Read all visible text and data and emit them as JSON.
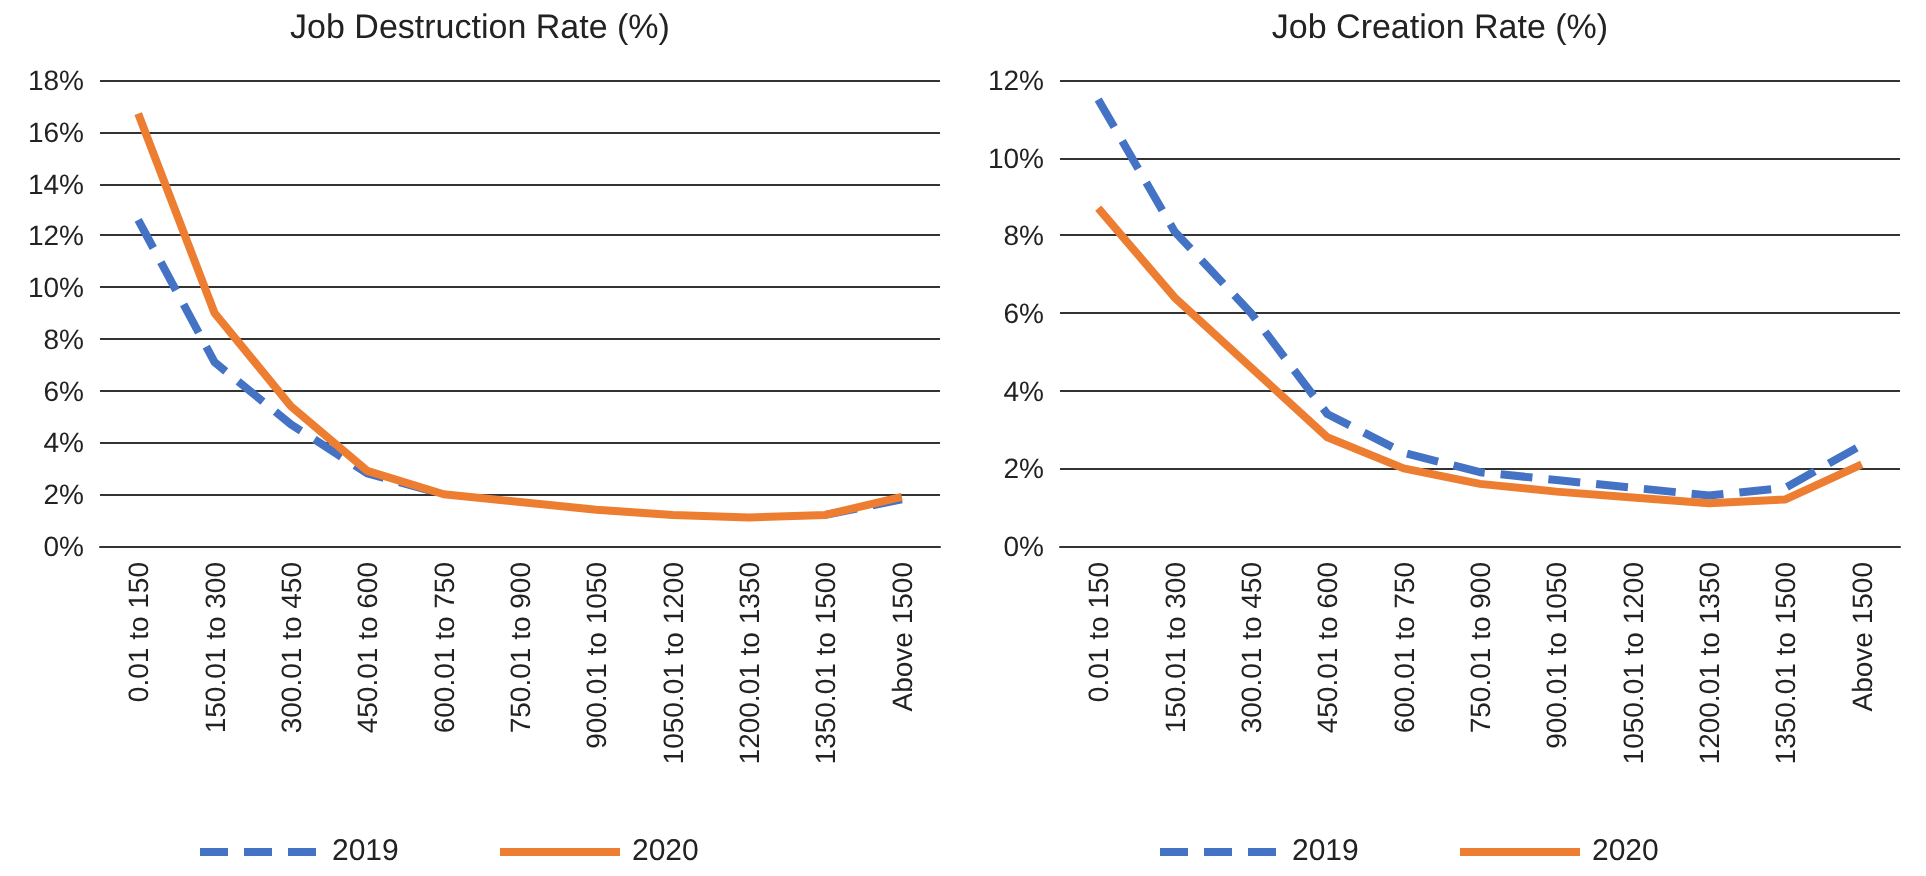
{
  "chart_data": [
    {
      "type": "line",
      "title": "Job Destruction Rate (%)",
      "categories": [
        "0.01 to 150",
        "150.01 to 300",
        "300.01 to 450",
        "450.01 to 600",
        "600.01 to 750",
        "750.01 to 900",
        "900.01 to 1050",
        "1050.01 to 1200",
        "1200.01 to 1350",
        "1350.01 to 1500",
        "Above 1500"
      ],
      "series": [
        {
          "name": "2019",
          "color": "#4472c4",
          "line_style": "dashed",
          "values": [
            12.6,
            7.1,
            4.7,
            2.8,
            2.0,
            null,
            null,
            null,
            null,
            1.2,
            1.8
          ]
        },
        {
          "name": "2020",
          "color": "#ed7d31",
          "line_style": "solid",
          "values": [
            16.7,
            9.0,
            5.4,
            2.9,
            2.0,
            1.7,
            1.4,
            1.2,
            1.1,
            1.2,
            1.9
          ]
        }
      ],
      "ylim": [
        0,
        18
      ],
      "yticks": [
        {
          "value": 0,
          "label": "0%"
        },
        {
          "value": 2,
          "label": "2%"
        },
        {
          "value": 4,
          "label": "4%"
        },
        {
          "value": 6,
          "label": "6%"
        },
        {
          "value": 8,
          "label": "8%"
        },
        {
          "value": 10,
          "label": "10%"
        },
        {
          "value": 12,
          "label": "12%"
        },
        {
          "value": 14,
          "label": "14%"
        },
        {
          "value": 16,
          "label": "16%"
        },
        {
          "value": 18,
          "label": "18%"
        }
      ],
      "grid": "y",
      "legend": "bottom",
      "marker": "none"
    },
    {
      "type": "line",
      "title": "Job Creation Rate (%)",
      "categories": [
        "0.01 to 150",
        "150.01 to 300",
        "300.01 to 450",
        "450.01 to 600",
        "600.01 to 750",
        "750.01 to 900",
        "900.01 to 1050",
        "1050.01 to 1200",
        "1200.01 to 1350",
        "1350.01 to 1500",
        "Above 1500"
      ],
      "series": [
        {
          "name": "2019",
          "color": "#4472c4",
          "line_style": "dashed",
          "values": [
            11.5,
            8.1,
            6.0,
            3.4,
            2.4,
            1.9,
            1.7,
            1.5,
            1.3,
            1.5,
            2.6
          ]
        },
        {
          "name": "2020",
          "color": "#ed7d31",
          "line_style": "solid",
          "values": [
            8.7,
            6.4,
            4.6,
            2.8,
            2.0,
            1.6,
            1.4,
            1.25,
            1.1,
            1.2,
            2.1
          ]
        }
      ],
      "ylim": [
        0,
        12
      ],
      "yticks": [
        {
          "value": 0,
          "label": "0%"
        },
        {
          "value": 2,
          "label": "2%"
        },
        {
          "value": 4,
          "label": "4%"
        },
        {
          "value": 6,
          "label": "6%"
        },
        {
          "value": 8,
          "label": "8%"
        },
        {
          "value": 10,
          "label": "10%"
        },
        {
          "value": 12,
          "label": "12%"
        }
      ],
      "grid": "y",
      "legend": "bottom",
      "marker": "none"
    }
  ]
}
